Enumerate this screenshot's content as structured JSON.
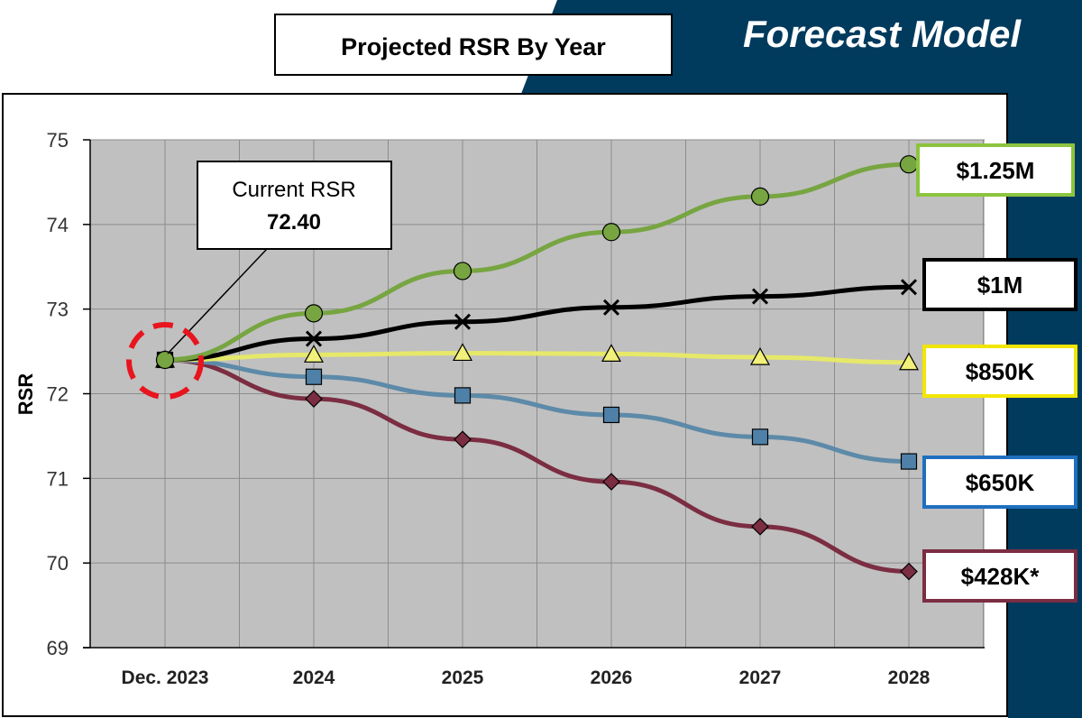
{
  "header": {
    "slide_title": "Forecast Model",
    "chart_title": "Projected RSR By Year"
  },
  "colors": {
    "banner": "#003A5D",
    "plot_bg": "#C0C0C0",
    "grid": "#8C8C8C",
    "highlight_circle": "#E8141E"
  },
  "callout": {
    "label": "Current RSR",
    "value": "72.40"
  },
  "chart_data": {
    "type": "line",
    "categories": [
      "Dec. 2023",
      "2024",
      "2025",
      "2026",
      "2027",
      "2028"
    ],
    "ylabel": "RSR",
    "xlabel": "",
    "ylim": [
      69,
      75
    ],
    "yticks": [
      69,
      70,
      71,
      72,
      73,
      74,
      75
    ],
    "grid": true,
    "series": [
      {
        "name": "$1.25M",
        "color": "#77A541",
        "marker": "circle",
        "marker_fill": "#77A541",
        "label_border": "#8CC43F",
        "values": [
          72.4,
          72.95,
          73.45,
          73.91,
          74.33,
          74.71
        ]
      },
      {
        "name": "$1M",
        "color": "#000000",
        "marker": "x",
        "marker_fill": "none",
        "label_border": "#000000",
        "values": [
          72.4,
          72.65,
          72.85,
          73.02,
          73.15,
          73.26
        ]
      },
      {
        "name": "$850K",
        "color": "#E6E86A",
        "marker": "triangle",
        "marker_fill": "#F0F07A",
        "label_border": "#F2E600",
        "values": [
          72.4,
          72.46,
          72.48,
          72.47,
          72.43,
          72.37
        ]
      },
      {
        "name": "$650K",
        "color": "#5D8AA8",
        "marker": "square",
        "marker_fill": "#4F81A8",
        "label_border": "#1F6FBF",
        "values": [
          72.4,
          72.2,
          71.98,
          71.75,
          71.49,
          71.2
        ]
      },
      {
        "name": "$428K*",
        "color": "#7B2D42",
        "marker": "diamond",
        "marker_fill": "#7B2D42",
        "label_border": "#7B2D42",
        "values": [
          72.4,
          71.94,
          71.46,
          70.96,
          70.43,
          69.9
        ]
      }
    ]
  }
}
